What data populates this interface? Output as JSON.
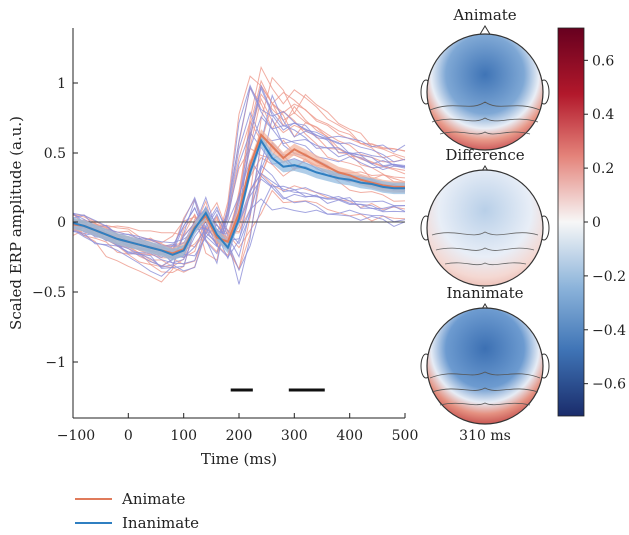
{
  "chart_data": [
    {
      "type": "line",
      "xlabel": "Time (ms)",
      "ylabel": "Scaled ERP amplitude (a.u.)",
      "xlim": [
        -100,
        500
      ],
      "ylim": [
        -1.3,
        1.4
      ],
      "x_ticks": [
        "−100",
        "0",
        "100",
        "200",
        "300",
        "400",
        "500"
      ],
      "y_ticks": [
        "1",
        "0.5",
        "0",
        "−0.5",
        "−1"
      ],
      "x": [
        -100,
        -80,
        -60,
        -40,
        -20,
        0,
        20,
        40,
        60,
        80,
        100,
        120,
        140,
        160,
        180,
        200,
        220,
        240,
        260,
        280,
        300,
        320,
        340,
        360,
        380,
        400,
        420,
        440,
        460,
        480,
        500
      ],
      "series": [
        {
          "name": "Animate",
          "color": "#E07B5B",
          "band_color": "#F2B09A",
          "values": [
            0.04,
            0.03,
            0.0,
            -0.03,
            -0.06,
            -0.08,
            -0.1,
            -0.12,
            -0.14,
            -0.16,
            -0.13,
            0.02,
            0.1,
            -0.05,
            -0.08,
            0.12,
            0.45,
            0.66,
            0.58,
            0.5,
            0.56,
            0.52,
            0.48,
            0.44,
            0.4,
            0.38,
            0.35,
            0.33,
            0.31,
            0.3,
            0.3
          ]
        },
        {
          "name": "Inanimate",
          "color": "#2F7FC1",
          "band_color": "#8DB8DE",
          "values": [
            0.05,
            0.03,
            0.0,
            -0.03,
            -0.06,
            -0.08,
            -0.1,
            -0.12,
            -0.14,
            -0.17,
            -0.14,
            0.01,
            0.12,
            -0.03,
            -0.12,
            0.08,
            0.4,
            0.62,
            0.5,
            0.44,
            0.45,
            0.43,
            0.4,
            0.38,
            0.36,
            0.35,
            0.33,
            0.32,
            0.3,
            0.29,
            0.29
          ]
        }
      ],
      "significance_bars": [
        [
          185,
          225
        ],
        [
          290,
          355
        ]
      ],
      "legend": {
        "placement": "bottom-left",
        "entries": [
          "Animate",
          "Inanimate"
        ]
      }
    },
    {
      "type": "heatmap",
      "topomap_titles": [
        "Animate",
        "Difference",
        "Inanimate"
      ],
      "time_label": "310 ms",
      "colorbar": {
        "range": [
          -0.72,
          0.72
        ],
        "ticks": [
          "0.6",
          "0.4",
          "0.2",
          "0",
          "−0.2",
          "−0.4",
          "−0.6"
        ],
        "tick_values": [
          0.6,
          0.4,
          0.2,
          0,
          -0.2,
          -0.4,
          -0.6
        ],
        "colormap": "blue-white-red"
      }
    }
  ]
}
